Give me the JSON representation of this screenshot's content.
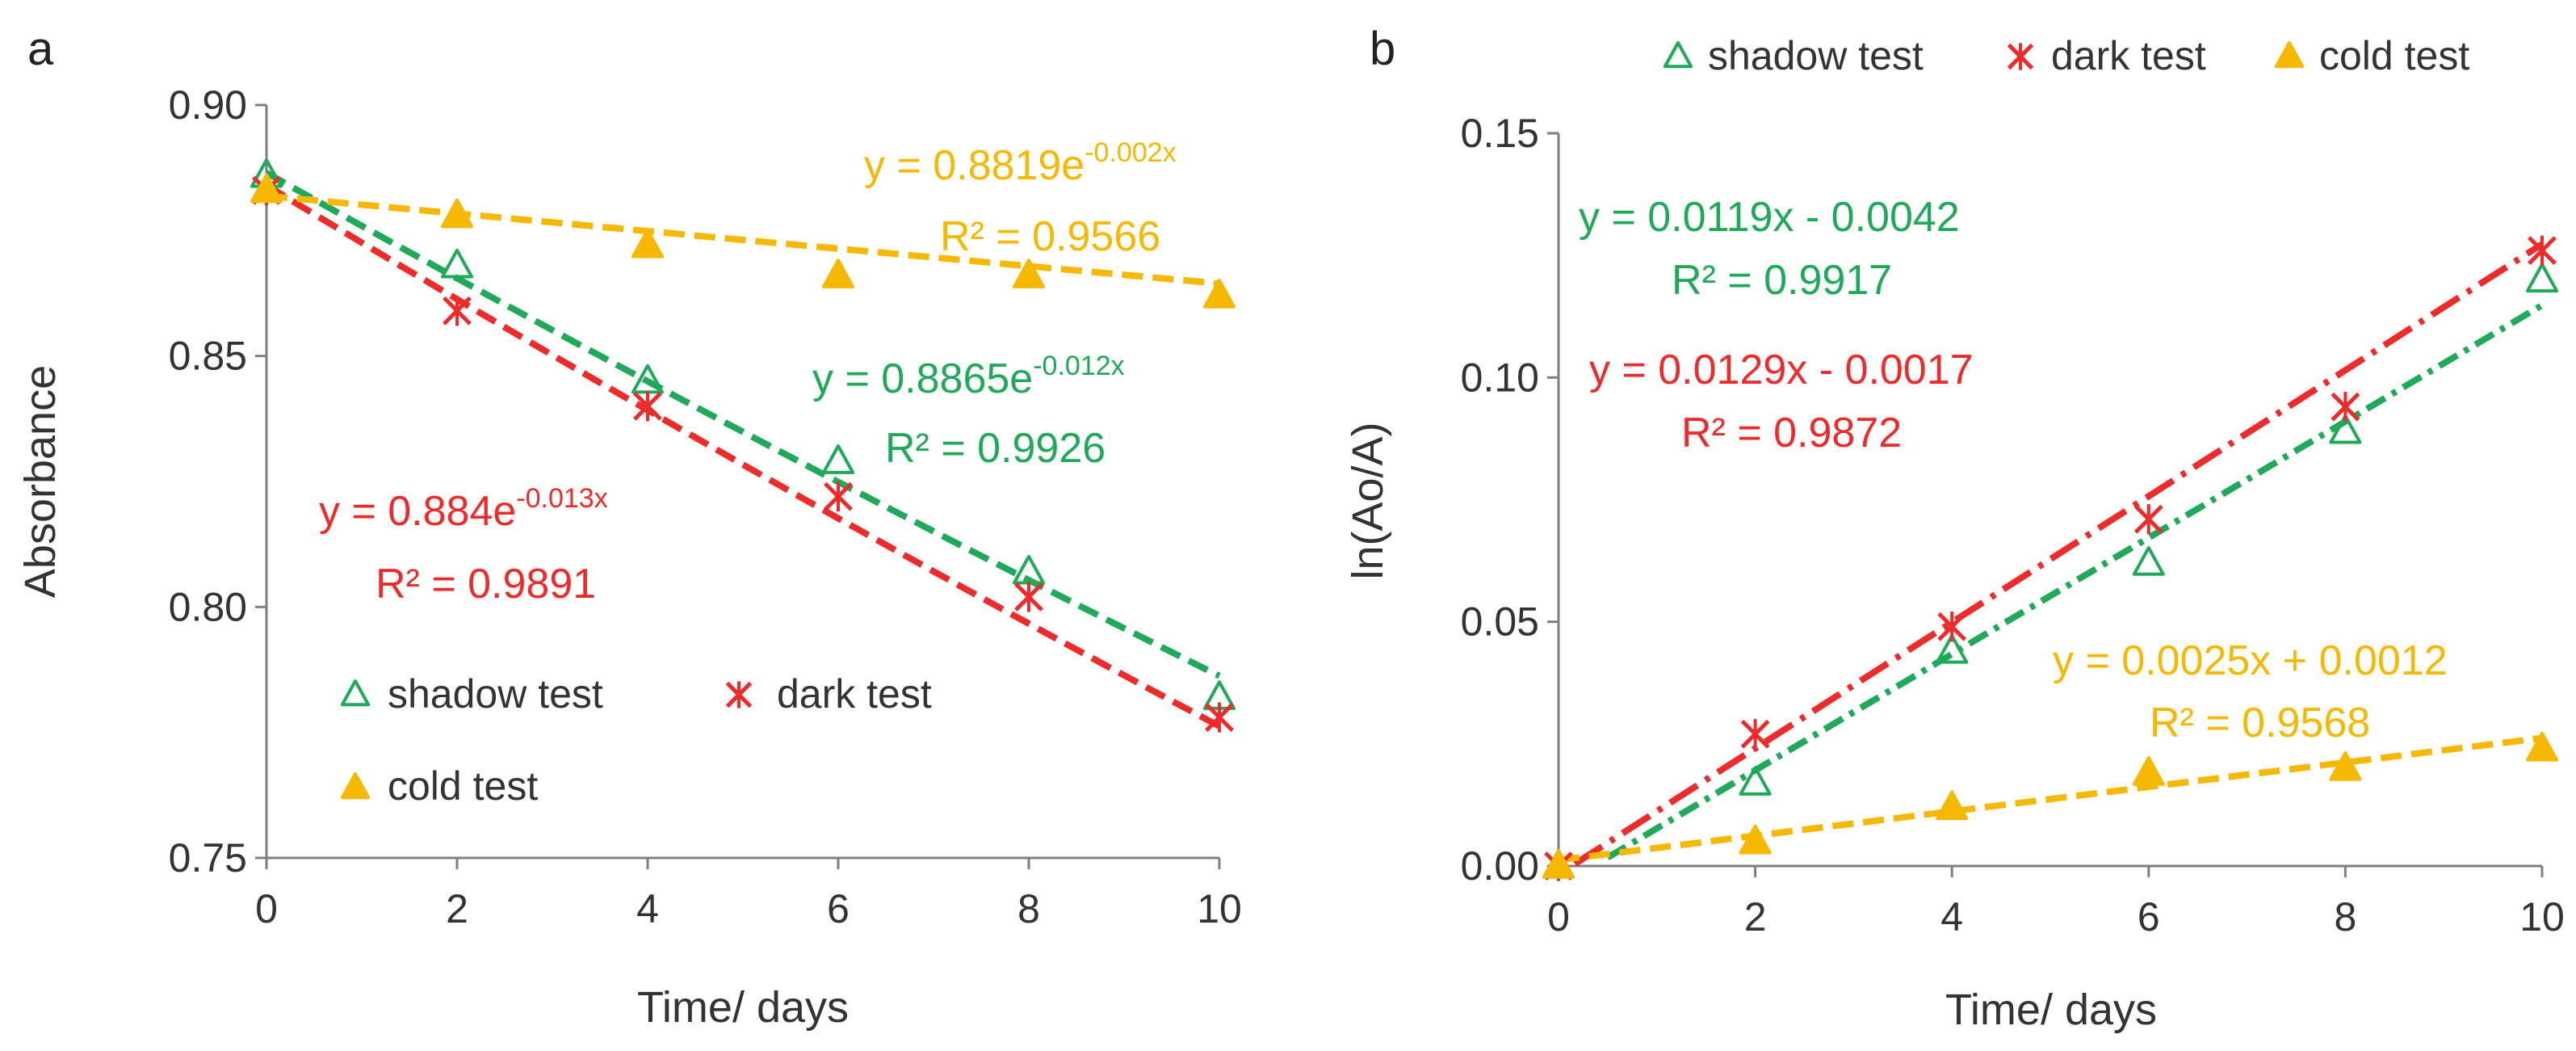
{
  "colors": {
    "shadow": "#1faa5a",
    "dark": "#ef2a2a",
    "cold": "#f6b800",
    "axis": "#7f7f7f"
  },
  "chart_data": [
    {
      "type": "scatter",
      "panel_label": "a",
      "xlabel": "Time/ days",
      "ylabel": "Absorbance",
      "xlim": [
        0,
        10
      ],
      "ylim": [
        0.75,
        0.9
      ],
      "xticks": [
        0,
        2,
        4,
        6,
        8,
        10
      ],
      "xtick_labels": [
        "0",
        "2",
        "4",
        "6",
        "8",
        "10"
      ],
      "yticks": [
        0.75,
        0.8,
        0.85,
        0.9
      ],
      "ytick_labels": [
        "0.75",
        "0.80",
        "0.85",
        "0.90"
      ],
      "series": [
        {
          "name": "shadow test",
          "key": "shadow",
          "marker": "triangle-open",
          "x": [
            0,
            2,
            4,
            6,
            8,
            10
          ],
          "y": [
            0.886,
            0.868,
            0.845,
            0.829,
            0.807,
            0.782
          ],
          "fit": {
            "kind": "exp",
            "a": 0.8865,
            "b": -0.012,
            "dash": "dash",
            "equation_prefix": "y = 0.8865e",
            "equation_exp": "-0.012x",
            "r2": "R² = 0.9926"
          }
        },
        {
          "name": "dark test",
          "key": "dark",
          "marker": "star",
          "x": [
            0,
            2,
            4,
            6,
            8,
            10
          ],
          "y": [
            0.883,
            0.859,
            0.84,
            0.822,
            0.802,
            0.778
          ],
          "fit": {
            "kind": "exp",
            "a": 0.884,
            "b": -0.013,
            "dash": "dash",
            "equation_prefix": "y = 0.884e",
            "equation_exp": "-0.013x",
            "r2": "R² = 0.9891"
          }
        },
        {
          "name": "cold test",
          "key": "cold",
          "marker": "triangle-filled",
          "x": [
            0,
            2,
            4,
            6,
            8,
            10
          ],
          "y": [
            0.883,
            0.878,
            0.872,
            0.866,
            0.866,
            0.862
          ],
          "fit": {
            "kind": "exp",
            "a": 0.8819,
            "b": -0.002,
            "dash": "dash",
            "equation_prefix": "y = 0.8819e",
            "equation_exp": "-0.002x",
            "r2": "R² = 0.9566"
          }
        }
      ],
      "legend": [
        "shadow test",
        "dark test",
        "cold test"
      ],
      "legend_position": "bottom-left"
    },
    {
      "type": "scatter",
      "panel_label": "b",
      "xlabel": "Time/ days",
      "ylabel": "ln(Ao/A)",
      "xlim": [
        0,
        10
      ],
      "ylim": [
        0.0,
        0.15
      ],
      "xticks": [
        0,
        2,
        4,
        6,
        8,
        10
      ],
      "xtick_labels": [
        "0",
        "2",
        "4",
        "6",
        "8",
        "10"
      ],
      "yticks": [
        0.0,
        0.05,
        0.1,
        0.15
      ],
      "ytick_labels": [
        "0.00",
        "0.05",
        "0.10",
        "0.15"
      ],
      "series": [
        {
          "name": "shadow test",
          "key": "shadow",
          "marker": "triangle-open",
          "x": [
            0,
            2,
            4,
            6,
            8,
            10
          ],
          "y": [
            0.0,
            0.017,
            0.044,
            0.062,
            0.089,
            0.12
          ],
          "fit": {
            "kind": "linear",
            "m": 0.0119,
            "c": -0.0042,
            "dash": "dashdot",
            "equation": "y = 0.0119x - 0.0042",
            "r2": "R² = 0.9917"
          }
        },
        {
          "name": "dark test",
          "key": "dark",
          "marker": "star",
          "x": [
            0,
            2,
            4,
            6,
            8,
            10
          ],
          "y": [
            0.0,
            0.027,
            0.049,
            0.071,
            0.094,
            0.126
          ],
          "fit": {
            "kind": "linear",
            "m": 0.0129,
            "c": -0.0017,
            "dash": "longdashdot",
            "equation": "y = 0.0129x - 0.0017",
            "r2": "R² = 0.9872"
          }
        },
        {
          "name": "cold test",
          "key": "cold",
          "marker": "triangle-filled",
          "x": [
            0,
            2,
            4,
            6,
            8,
            10
          ],
          "y": [
            0.0,
            0.005,
            0.012,
            0.019,
            0.02,
            0.024
          ],
          "fit": {
            "kind": "linear",
            "m": 0.0025,
            "c": 0.0012,
            "dash": "dash",
            "equation": "y = 0.0025x + 0.0012",
            "r2": "R² = 0.9568"
          }
        }
      ],
      "legend": [
        "shadow test",
        "dark test",
        "cold test"
      ],
      "legend_position": "top"
    }
  ]
}
